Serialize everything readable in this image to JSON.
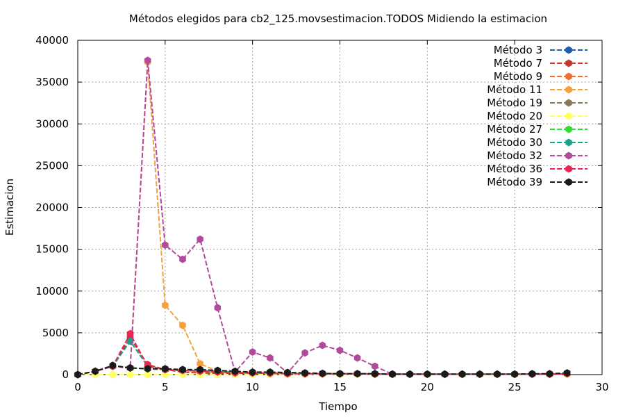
{
  "chart_data": {
    "type": "line",
    "title": "Métodos elegidos para cb2_125.movsestimacion.TODOS Midiendo la estimacion",
    "xlabel": "Tiempo",
    "ylabel": "Estimacion",
    "xlim": [
      0,
      30
    ],
    "ylim": [
      0,
      40000
    ],
    "x_ticks": [
      "0",
      "5",
      "10",
      "15",
      "20",
      "25",
      "30"
    ],
    "y_ticks": [
      "0",
      "5000",
      "10000",
      "15000",
      "20000",
      "25000",
      "30000",
      "35000",
      "40000"
    ],
    "grid": true,
    "legend_position": "top-right",
    "series": [
      {
        "name": "Método 3",
        "color": "#1f5fae",
        "x": [
          0,
          1,
          2,
          3,
          4,
          5,
          6,
          7,
          8,
          9,
          10,
          11,
          12,
          13,
          14,
          15,
          16,
          17,
          18,
          19,
          20,
          21,
          22,
          23,
          24,
          25,
          26,
          27,
          28
        ],
        "values": [
          0,
          400,
          1000,
          800,
          700,
          600,
          500,
          500,
          400,
          300,
          200,
          200,
          150,
          100,
          100,
          100,
          100,
          100,
          50,
          50,
          50,
          50,
          50,
          50,
          50,
          50,
          50,
          50,
          100
        ]
      },
      {
        "name": "Método 7",
        "color": "#c0392b",
        "x": [
          0,
          1,
          2,
          3,
          4,
          5,
          6,
          7,
          8,
          9,
          10,
          11,
          12,
          13,
          14,
          15,
          16,
          17,
          18,
          19,
          20,
          21,
          22,
          23,
          24,
          25,
          26,
          27,
          28
        ],
        "values": [
          0,
          400,
          1000,
          4400,
          1200,
          600,
          300,
          200,
          150,
          100,
          100,
          100,
          100,
          100,
          50,
          50,
          50,
          50,
          50,
          50,
          50,
          50,
          50,
          50,
          50,
          50,
          50,
          50,
          100
        ]
      },
      {
        "name": "Método 9",
        "color": "#f07030",
        "x": [
          0,
          1,
          2,
          3,
          4,
          5,
          6,
          7,
          8,
          9,
          10,
          11,
          12,
          13,
          14,
          15,
          16,
          17,
          18,
          19,
          20,
          21,
          22,
          23,
          24,
          25,
          26,
          27,
          28
        ],
        "values": [
          0,
          400,
          1000,
          800,
          700,
          600,
          500,
          400,
          300,
          200,
          200,
          150,
          100,
          100,
          100,
          50,
          50,
          50,
          50,
          50,
          50,
          50,
          50,
          50,
          50,
          50,
          50,
          50,
          100
        ]
      },
      {
        "name": "Método 11",
        "color": "#f5a03c",
        "x": [
          0,
          1,
          2,
          3,
          4,
          5,
          6,
          7,
          8,
          9,
          10,
          11,
          12,
          13,
          14,
          15,
          16,
          17,
          18,
          19,
          20,
          21,
          22,
          23,
          24,
          25,
          26,
          27,
          28
        ],
        "values": [
          0,
          400,
          1000,
          800,
          37400,
          8300,
          5900,
          1300,
          400,
          300,
          200,
          200,
          150,
          100,
          100,
          100,
          100,
          100,
          50,
          50,
          50,
          50,
          50,
          50,
          50,
          50,
          50,
          50,
          100
        ]
      },
      {
        "name": "Método 19",
        "color": "#8b7a5a",
        "x": [
          0,
          1,
          2,
          3,
          4,
          5,
          6,
          7,
          8,
          9,
          10,
          11,
          12,
          13,
          14,
          15,
          16,
          17,
          18,
          19,
          20,
          21,
          22,
          23,
          24,
          25,
          26,
          27,
          28
        ],
        "values": [
          0,
          400,
          1000,
          800,
          700,
          600,
          500,
          500,
          400,
          300,
          200,
          200,
          150,
          100,
          100,
          100,
          100,
          100,
          50,
          50,
          50,
          50,
          50,
          50,
          50,
          50,
          50,
          50,
          100
        ]
      },
      {
        "name": "Método 20",
        "color": "#ffff66",
        "x": [
          0,
          1,
          2,
          3,
          4,
          5,
          6,
          7,
          8,
          9,
          10,
          11,
          12,
          13,
          14,
          15,
          16,
          17,
          18,
          19,
          20,
          21,
          22,
          23,
          24,
          25,
          26,
          27,
          28
        ],
        "values": [
          0,
          0,
          0,
          0,
          0,
          0,
          0,
          0,
          0,
          0,
          0,
          0,
          0,
          0,
          0,
          0,
          0,
          0,
          0,
          0,
          0,
          0,
          0,
          0,
          0,
          0,
          0,
          0,
          0
        ]
      },
      {
        "name": "Método 27",
        "color": "#33dd33",
        "x": [
          0,
          1,
          2,
          3,
          4,
          5,
          6,
          7,
          8,
          9,
          10,
          11,
          12,
          13,
          14,
          15,
          16,
          17,
          18,
          19,
          20,
          21,
          22,
          23,
          24,
          25,
          26,
          27,
          28
        ],
        "values": [
          0,
          400,
          1000,
          800,
          700,
          600,
          500,
          500,
          400,
          300,
          200,
          200,
          150,
          100,
          100,
          100,
          100,
          100,
          50,
          50,
          50,
          50,
          50,
          50,
          50,
          50,
          50,
          50,
          100
        ]
      },
      {
        "name": "Método 30",
        "color": "#17a589",
        "x": [
          0,
          1,
          2,
          3,
          4,
          5,
          6,
          7,
          8,
          9,
          10,
          11,
          12,
          13,
          14,
          15,
          16,
          17,
          18,
          19,
          20,
          21,
          22,
          23,
          24,
          25,
          26,
          27,
          28
        ],
        "values": [
          0,
          400,
          1000,
          4000,
          1000,
          600,
          500,
          500,
          400,
          300,
          200,
          200,
          150,
          100,
          100,
          100,
          100,
          100,
          50,
          50,
          50,
          50,
          50,
          50,
          50,
          50,
          50,
          50,
          100
        ]
      },
      {
        "name": "Método 32",
        "color": "#b04a9a",
        "x": [
          0,
          1,
          2,
          3,
          4,
          5,
          6,
          7,
          8,
          9,
          10,
          11,
          12,
          13,
          14,
          15,
          16,
          17,
          18,
          19,
          20,
          21,
          22,
          23,
          24,
          25,
          26,
          27,
          28
        ],
        "values": [
          0,
          400,
          1000,
          800,
          37600,
          15500,
          13800,
          16200,
          8000,
          300,
          2700,
          2000,
          200,
          2600,
          3500,
          2900,
          2000,
          1000,
          50,
          50,
          50,
          50,
          50,
          50,
          50,
          50,
          50,
          50,
          100
        ]
      },
      {
        "name": "Método 36",
        "color": "#ee2255",
        "x": [
          0,
          1,
          2,
          3,
          4,
          5,
          6,
          7,
          8,
          9,
          10,
          11,
          12,
          13,
          14,
          15,
          16,
          17,
          18,
          19,
          20,
          21,
          22,
          23,
          24,
          25,
          26,
          27,
          28
        ],
        "values": [
          0,
          400,
          1000,
          4900,
          1000,
          600,
          500,
          400,
          300,
          200,
          200,
          150,
          100,
          100,
          100,
          100,
          100,
          50,
          50,
          50,
          50,
          50,
          50,
          50,
          50,
          50,
          50,
          50,
          100
        ]
      },
      {
        "name": "Método 39",
        "color": "#1a1a1a",
        "x": [
          0,
          1,
          2,
          3,
          4,
          5,
          6,
          7,
          8,
          9,
          10,
          11,
          12,
          13,
          14,
          15,
          16,
          17,
          18,
          19,
          20,
          21,
          22,
          23,
          24,
          25,
          26,
          27,
          28
        ],
        "values": [
          0,
          400,
          1100,
          800,
          700,
          700,
          600,
          600,
          500,
          400,
          300,
          300,
          250,
          200,
          150,
          100,
          100,
          100,
          50,
          50,
          50,
          50,
          50,
          50,
          50,
          50,
          100,
          100,
          200
        ]
      }
    ]
  }
}
